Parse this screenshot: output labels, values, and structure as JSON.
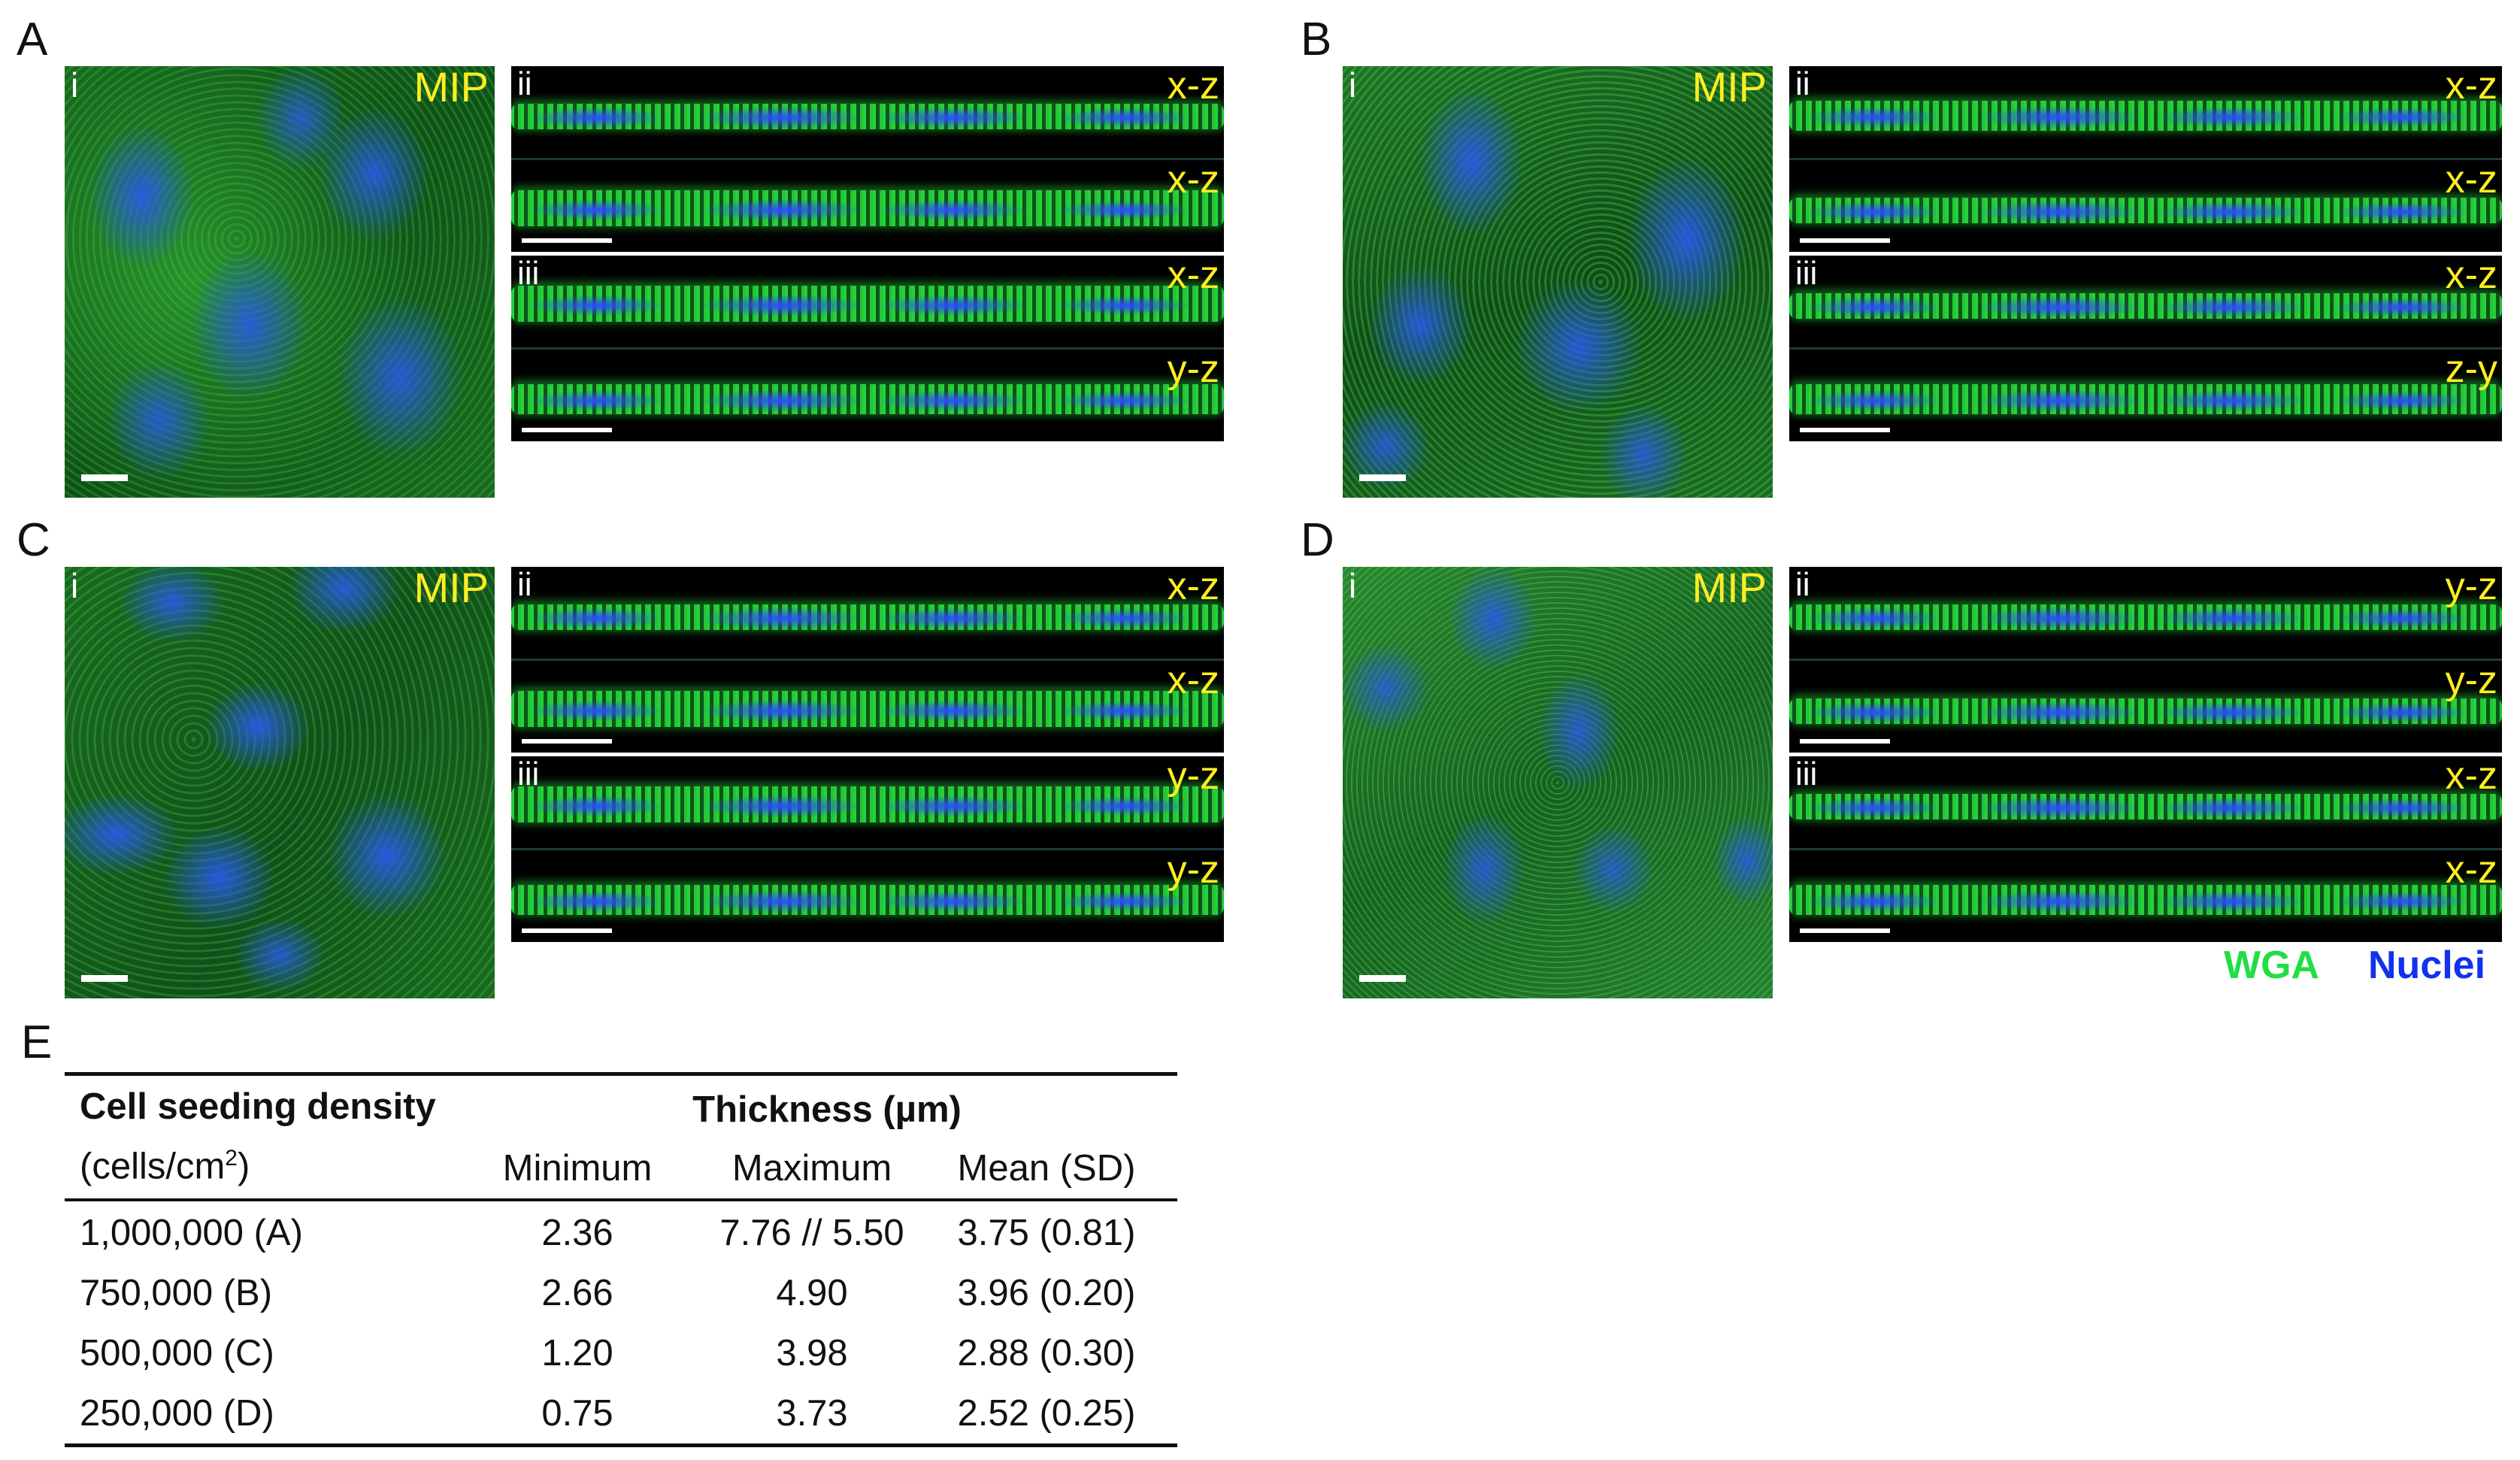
{
  "panels": [
    {
      "letter": "A",
      "mip_label": "MIP",
      "roman_i": "i",
      "roman_ii": "ii",
      "roman_iii": "iii",
      "strips": [
        "x-z",
        "x-z",
        "x-z",
        "y-z"
      ]
    },
    {
      "letter": "B",
      "mip_label": "MIP",
      "roman_i": "i",
      "roman_ii": "ii",
      "roman_iii": "iii",
      "strips": [
        "x-z",
        "x-z",
        "x-z",
        "z-y"
      ]
    },
    {
      "letter": "C",
      "mip_label": "MIP",
      "roman_i": "i",
      "roman_ii": "ii",
      "roman_iii": "iii",
      "strips": [
        "x-z",
        "x-z",
        "y-z",
        "y-z"
      ]
    },
    {
      "letter": "D",
      "mip_label": "MIP",
      "roman_i": "i",
      "roman_ii": "ii",
      "roman_iii": "iii",
      "strips": [
        "y-z",
        "y-z",
        "x-z",
        "x-z"
      ]
    }
  ],
  "legend": {
    "wga": "WGA",
    "nuclei": "Nuclei",
    "wga_color": "#22dd44",
    "nuclei_color": "#1133ee"
  },
  "table": {
    "panel_letter": "E",
    "header_left_1": "Cell seeding density",
    "header_left_2": "(cells/cm",
    "header_left_2_sup": "2",
    "header_left_2_end": ")",
    "header_group": "Thickness (µm)",
    "col_min": "Minimum",
    "col_max": "Maximum",
    "col_mean": "Mean (SD)",
    "rows": [
      {
        "density": "1,000,000 (A)",
        "min": "2.36",
        "max": "7.76 // 5.50",
        "mean": "3.75 (0.81)"
      },
      {
        "density": "750,000 (B)",
        "min": "2.66",
        "max": "4.90",
        "mean": "3.96 (0.20)"
      },
      {
        "density": "500,000 (C)",
        "min": "1.20",
        "max": "3.98",
        "mean": "2.88 (0.30)"
      },
      {
        "density": "250,000 (D)",
        "min": "0.75",
        "max": "3.73",
        "mean": "2.52 (0.25)"
      }
    ]
  }
}
